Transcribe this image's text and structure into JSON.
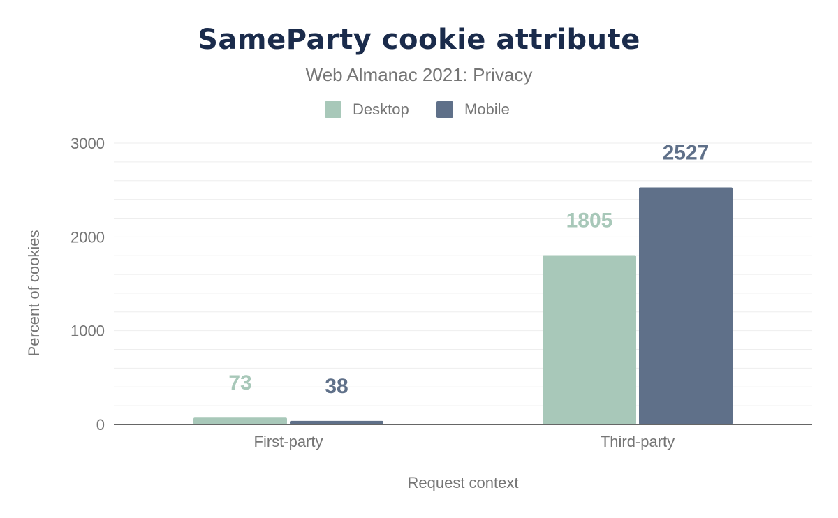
{
  "colors": {
    "desktop": "#a8c8b9",
    "mobile": "#5f7089",
    "title": "#1a2b4b",
    "text": "#757575",
    "grid": "#eeeeee",
    "axis": "#333333"
  },
  "chart_data": {
    "type": "bar",
    "title": "SameParty cookie attribute",
    "subtitle": "Web Almanac 2021: Privacy",
    "xlabel": "Request context",
    "ylabel": "Percent of cookies",
    "categories": [
      "First-party",
      "Third-party"
    ],
    "series": [
      {
        "name": "Desktop",
        "values": [
          73,
          1805
        ]
      },
      {
        "name": "Mobile",
        "values": [
          38,
          2527
        ]
      }
    ],
    "ylim": [
      0,
      3000
    ],
    "yticks": [
      "0",
      "1000",
      "2000",
      "3000"
    ],
    "grid": true,
    "legend": "top-center"
  }
}
